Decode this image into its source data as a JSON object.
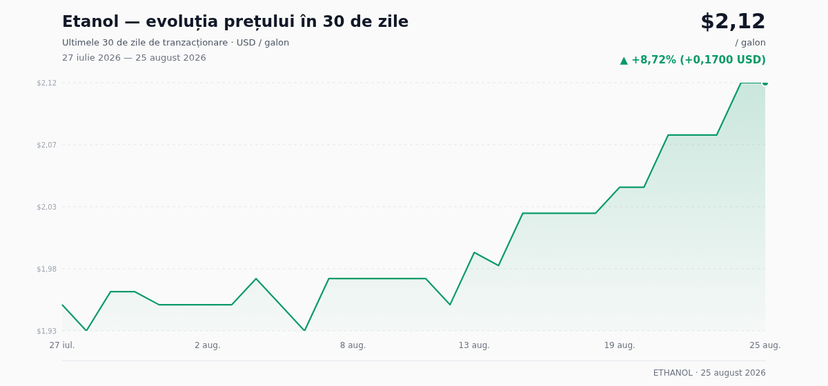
{
  "chart_data": {
    "type": "area",
    "title": "Etanol — evoluția prețului în 30 de zile",
    "subtitle": "Ultimele 30 de zile de tranzacționare · USD / galon",
    "annotations": [
      "27 iulie 2026 — 25 august 2026",
      "$2,12",
      "/ galon",
      "▲ +8,72% (+0,1700 USD)",
      "ETHANOL · 25 august 2026"
    ],
    "categories": [
      "27 iul.",
      null,
      null,
      null,
      null,
      null,
      "2 aug.",
      null,
      null,
      null,
      null,
      null,
      "8 aug.",
      null,
      null,
      null,
      null,
      "13 aug.",
      null,
      null,
      null,
      null,
      null,
      "19 aug.",
      null,
      null,
      null,
      null,
      null,
      "25 aug."
    ],
    "series": [
      {
        "color": "#0a9a68",
        "values": [
          1.95,
          1.93,
          1.96,
          1.96,
          1.95,
          1.95,
          1.95,
          1.95,
          1.97,
          1.95,
          1.93,
          1.97,
          1.97,
          1.97,
          1.97,
          1.97,
          1.95,
          1.99,
          1.98,
          2.02,
          2.02,
          2.02,
          2.02,
          2.04,
          2.04,
          2.08,
          2.08,
          2.08,
          2.12,
          2.12
        ]
      }
    ],
    "ylim": [
      1.93,
      2.12
    ],
    "yticks": [
      {
        "value": 1.93,
        "label": "$1,93"
      },
      {
        "value": 1.9775,
        "label": "$1,98"
      },
      {
        "value": 2.025,
        "label": "$2,03"
      },
      {
        "value": 2.0725,
        "label": "$2,07"
      },
      {
        "value": 2.12,
        "label": "$2,12"
      }
    ],
    "grid": "y",
    "marker": "none",
    "line_style": "solid"
  }
}
